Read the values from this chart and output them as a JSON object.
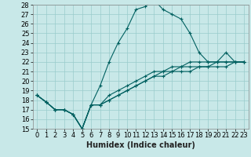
{
  "xlabel": "Humidex (Indice chaleur)",
  "ylabel": "",
  "bg_color": "#c8e8e8",
  "line_color": "#006060",
  "grid_color": "#99cccc",
  "ylim": [
    15,
    28
  ],
  "xlim": [
    -0.5,
    23.5
  ],
  "yticks": [
    15,
    16,
    17,
    18,
    19,
    20,
    21,
    22,
    23,
    24,
    25,
    26,
    27,
    28
  ],
  "xticks": [
    0,
    1,
    2,
    3,
    4,
    5,
    6,
    7,
    8,
    9,
    10,
    11,
    12,
    13,
    14,
    15,
    16,
    17,
    18,
    19,
    20,
    21,
    22,
    23
  ],
  "xtick_labels": [
    "0",
    "1",
    "2",
    "3",
    "4",
    "5",
    "6",
    "7",
    "8",
    "9",
    "10",
    "11",
    "12",
    "13",
    "14",
    "15",
    "16",
    "17",
    "18",
    "19",
    "20",
    "21",
    "22",
    "23"
  ],
  "series": [
    [
      18.5,
      17.8,
      17.0,
      17.0,
      16.5,
      15.0,
      17.5,
      19.5,
      22.0,
      24.0,
      25.5,
      27.5,
      27.8,
      28.5,
      27.5,
      27.0,
      26.5,
      25.0,
      23.0,
      22.0,
      22.0,
      23.0,
      22.0,
      22.0
    ],
    [
      18.5,
      17.8,
      17.0,
      17.0,
      16.5,
      15.0,
      17.5,
      17.5,
      18.5,
      19.0,
      19.5,
      20.0,
      20.5,
      21.0,
      21.0,
      21.5,
      21.5,
      22.0,
      22.0,
      22.0,
      22.0,
      22.0,
      22.0,
      22.0
    ],
    [
      18.5,
      17.8,
      17.0,
      17.0,
      16.5,
      15.0,
      17.5,
      17.5,
      18.0,
      18.5,
      19.0,
      19.5,
      20.0,
      20.5,
      21.0,
      21.0,
      21.5,
      21.5,
      21.5,
      21.5,
      22.0,
      22.0,
      22.0,
      22.0
    ],
    [
      18.5,
      17.8,
      17.0,
      17.0,
      16.5,
      15.0,
      17.5,
      17.5,
      18.0,
      18.5,
      19.0,
      19.5,
      20.0,
      20.5,
      20.5,
      21.0,
      21.0,
      21.0,
      21.5,
      21.5,
      21.5,
      21.5,
      22.0,
      22.0
    ]
  ],
  "tick_fontsize": 6,
  "xlabel_fontsize": 7,
  "marker": "+",
  "markersize": 3,
  "linewidth": 0.8
}
